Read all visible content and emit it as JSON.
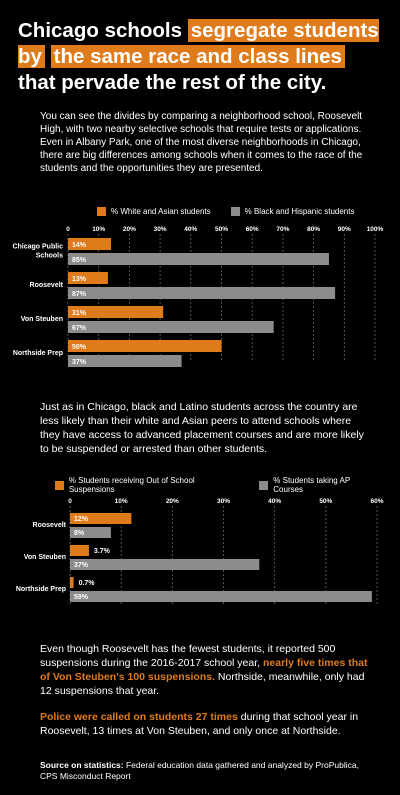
{
  "headline": {
    "part1": "Chicago schools ",
    "highlight1": "segregate students by",
    "highlight2": "the same race and class lines",
    "part2": " that pervade the rest of the city."
  },
  "intro": "You can see the divides by comparing a neighborhood school, Roosevelt High, with two nearby selective schools that require tests or applications. Even in Albany Park, one of the most diverse neighborhoods in Chicago, there are big differences among schools when it comes to the race of the students and the opportunities they are presented.",
  "mid": "Just as in Chicago, black and Latino students across the country are less likely than their white and Asian peers to attend schools where they have access to advanced placement courses and are more likely to be suspended or arrested than other students.",
  "closing": {
    "p1_a": "Even though Roosevelt has the fewest students, it reported 500 suspensions during the 2016-2017 school year, ",
    "p1_orange": "nearly five times that of Von Steuben's 100 suspensions.",
    "p1_b": " Northside, meanwhile, only had 12 suspensions that year.",
    "p2_orange": "Police were called on students 27 times",
    "p2_b": " during that school year in Roosevelt, 13 times at Von Steuben, and only once at Northside."
  },
  "source": {
    "label": "Source on statistics:",
    "text": " Federal education data gathered and analyzed by ProPublica, CPS Misconduct Report"
  },
  "colors": {
    "orange": "#e07b1b",
    "gray": "#8c8c8c",
    "grid": "#666666"
  },
  "chart_data": [
    {
      "type": "bar",
      "orientation": "horizontal",
      "categories": [
        "Chicago Public Schools",
        "Roosevelt",
        "Von Steuben",
        "Northside Prep"
      ],
      "series": [
        {
          "name": "% White and Asian students",
          "values": [
            14,
            13,
            31,
            50
          ],
          "labels": [
            "14%",
            "13%",
            "31%",
            "50%"
          ]
        },
        {
          "name": "% Black and Hispanic students",
          "values": [
            85,
            87,
            67,
            37
          ],
          "labels": [
            "85%",
            "87%",
            "67%",
            "37%"
          ]
        }
      ],
      "xlim": [
        0,
        100
      ],
      "ticks": [
        "0",
        "10%",
        "20%",
        "30%",
        "40%",
        "50%",
        "60%",
        "70%",
        "80%",
        "90%",
        "100%"
      ],
      "grid": true,
      "legend": "top"
    },
    {
      "type": "bar",
      "orientation": "horizontal",
      "categories": [
        "Roosevelt",
        "Von Steuben",
        "Northside Prep"
      ],
      "series": [
        {
          "name": "% Students receiving Out of School Suspensions",
          "values": [
            12,
            3.7,
            0.7
          ],
          "labels": [
            "12%",
            "3.7%",
            "0.7%"
          ]
        },
        {
          "name": "% Students taking AP Courses",
          "values": [
            8,
            37,
            59
          ],
          "labels": [
            "8%",
            "37%",
            "59%"
          ]
        }
      ],
      "xlim": [
        0,
        60
      ],
      "ticks": [
        "0",
        "10%",
        "20%",
        "30%",
        "40%",
        "50%",
        "60%"
      ],
      "grid": true,
      "legend": "top"
    }
  ]
}
